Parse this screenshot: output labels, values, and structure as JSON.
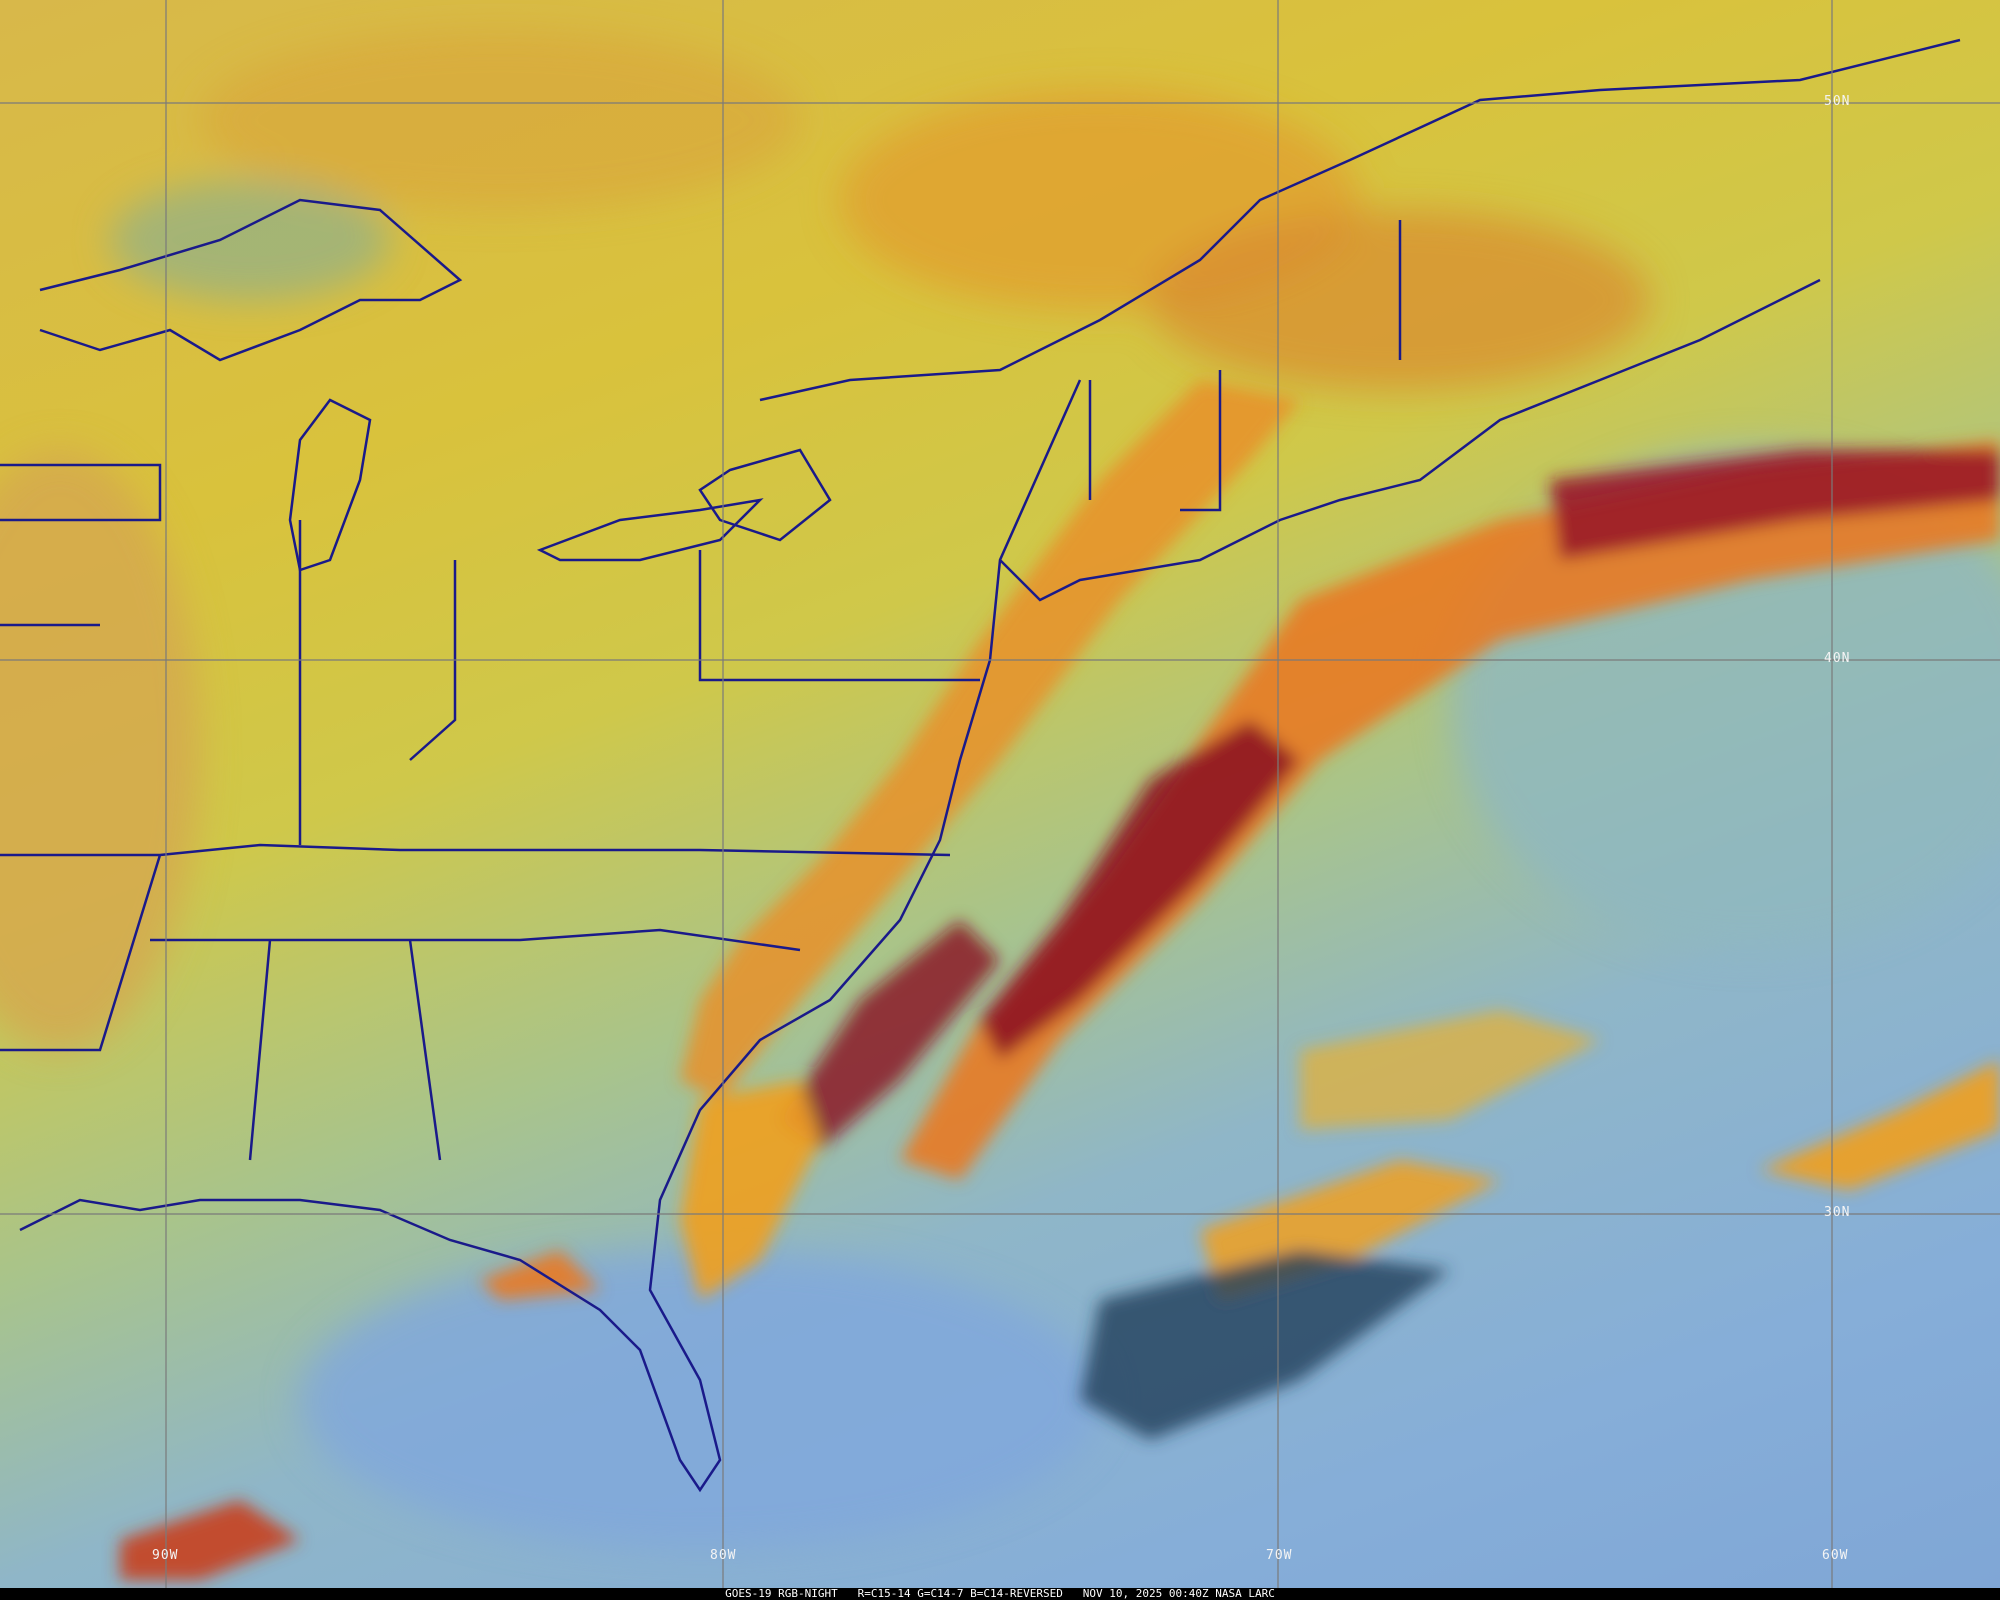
{
  "caption": {
    "satellite": "GOES-19 RGB-NIGHT",
    "channels": "R=C15-14 G=C14-7 B=C14-REVERSED",
    "timestamp": "NOV 10, 2025 00:40Z",
    "source": "NASA LARC"
  },
  "grid": {
    "longitudes": [
      "90W",
      "80W",
      "70W",
      "60W"
    ],
    "latitudes": [
      "50N",
      "40N",
      "30N"
    ],
    "line_color": "#7a7a7a"
  },
  "colors": {
    "land_clear": "#d8c23c",
    "ocean_clear": "#86aed8",
    "high_cloud": "#f0a020",
    "deep_cloud": "#8a1020",
    "boundaries": "#1a1a8a"
  }
}
